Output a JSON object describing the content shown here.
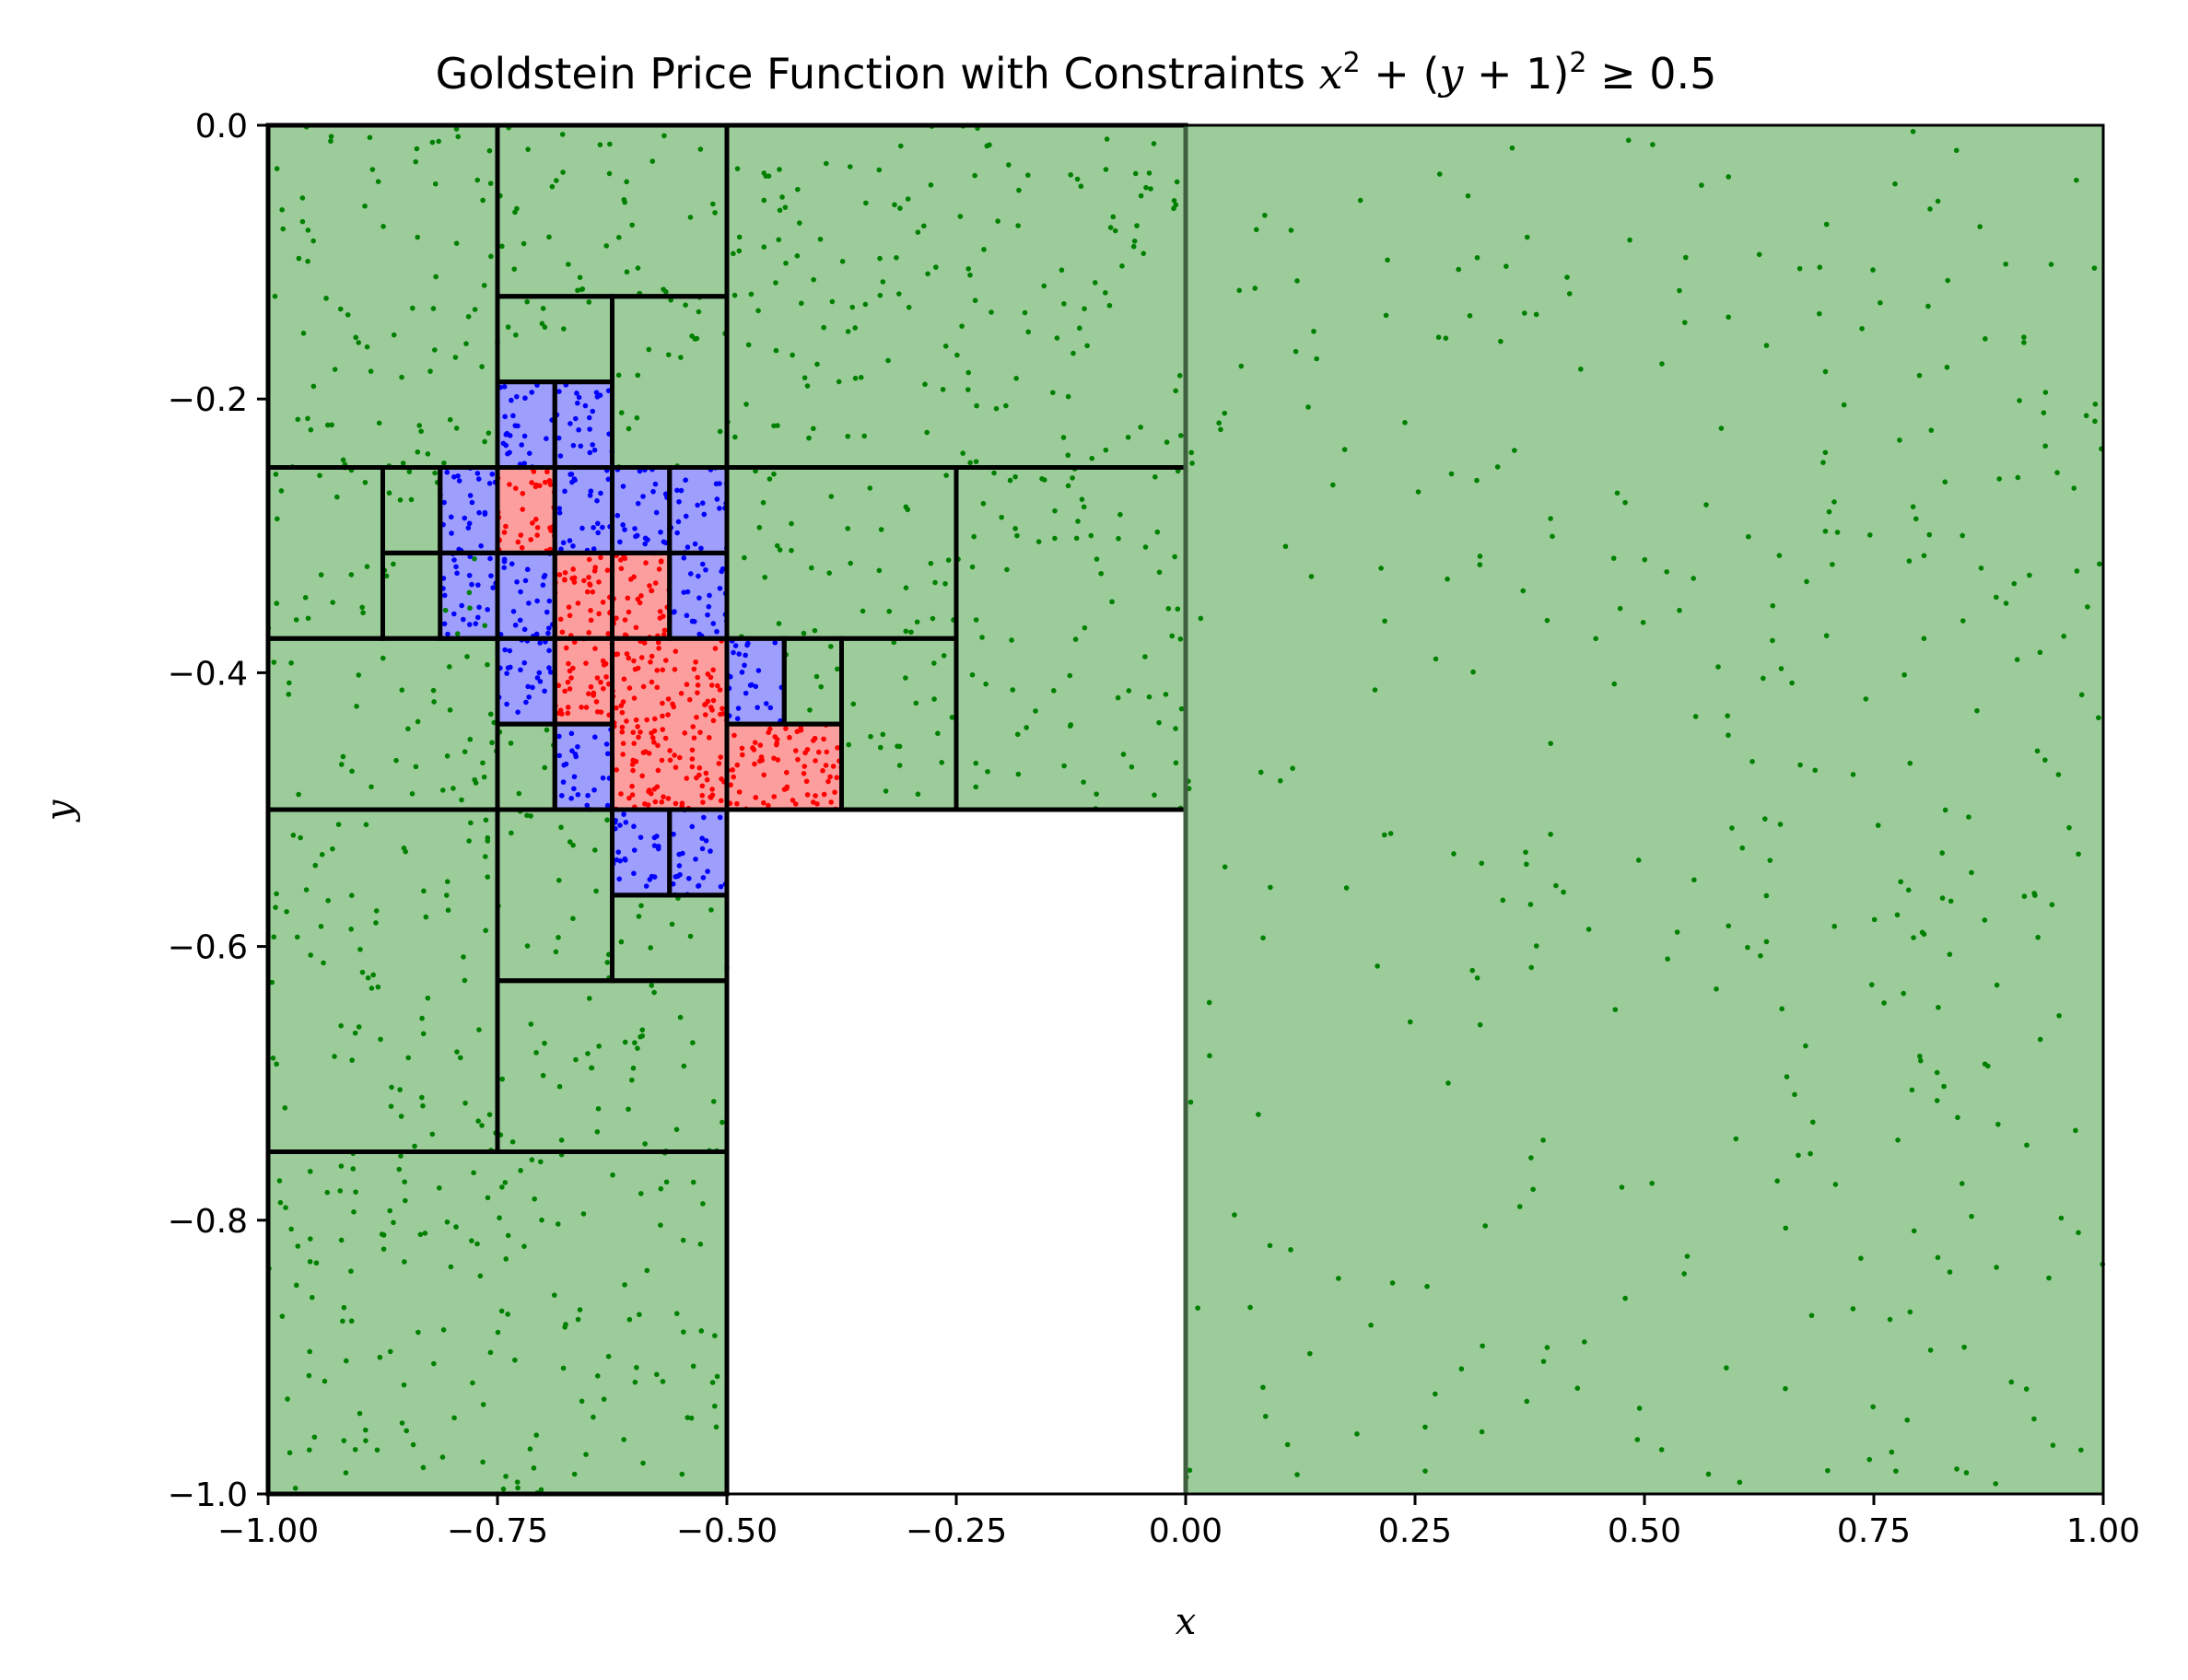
{
  "chart_data": {
    "type": "scatter",
    "title": "Goldstein Price Function with Constraints",
    "title_math": {
      "x": "x",
      "sq1": "2",
      "plus1": " + (",
      "y": "y",
      "plus2": " + 1)",
      "sq2": "2",
      "rel": " ≥ 0.5"
    },
    "xlabel": "x",
    "ylabel": "y",
    "xlim": [
      -1.0,
      1.0
    ],
    "ylim": [
      -1.0,
      0.0
    ],
    "x_ticks": [
      "−1.00",
      "−0.75",
      "−0.50",
      "−0.25",
      "0.00",
      "0.25",
      "0.50",
      "0.75",
      "1.00"
    ],
    "y_ticks": [
      "0.0",
      "−0.2",
      "−0.4",
      "−0.6",
      "−0.8",
      "−1.0"
    ],
    "x_tick_values": [
      -1.0,
      -0.75,
      -0.5,
      -0.25,
      0.0,
      0.25,
      0.5,
      0.75,
      1.0
    ],
    "y_tick_values": [
      0.0,
      -0.2,
      -0.4,
      -0.6,
      -0.8,
      -1.0
    ],
    "grid": false,
    "legend": "none",
    "colors": {
      "feasible_fill": "#9ccc9a",
      "boundary_fill": "#9e9efd",
      "optimal_fill": "#fd9e9e",
      "feasible_points": "#008000",
      "boundary_points": "#0000ff",
      "optimal_points": "#ff0000",
      "box_edge": "#000000"
    },
    "boxes": [
      {
        "x": [
          0.0,
          1.0
        ],
        "y": [
          -1.0,
          0.0
        ],
        "status": "feasible"
      },
      {
        "x": [
          -1.0,
          -0.75
        ],
        "y": [
          -0.25,
          0.0
        ],
        "status": "feasible"
      },
      {
        "x": [
          -0.75,
          -0.5
        ],
        "y": [
          -0.125,
          0.0
        ],
        "status": "feasible"
      },
      {
        "x": [
          -0.5,
          0.0
        ],
        "y": [
          -0.25,
          0.0
        ],
        "status": "feasible"
      },
      {
        "x": [
          -0.75,
          -0.625
        ],
        "y": [
          -0.1875,
          -0.125
        ],
        "status": "feasible"
      },
      {
        "x": [
          -0.625,
          -0.5
        ],
        "y": [
          -0.25,
          -0.125
        ],
        "status": "feasible"
      },
      {
        "x": [
          -1.0,
          -0.875
        ],
        "y": [
          -0.375,
          -0.25
        ],
        "status": "feasible"
      },
      {
        "x": [
          -0.875,
          -0.8125
        ],
        "y": [
          -0.3125,
          -0.25
        ],
        "status": "feasible"
      },
      {
        "x": [
          -0.875,
          -0.75
        ],
        "y": [
          -0.375,
          -0.3125
        ],
        "status": "feasible"
      },
      {
        "x": [
          -0.5,
          -0.25
        ],
        "y": [
          -0.375,
          -0.25
        ],
        "status": "feasible"
      },
      {
        "x": [
          -0.25,
          0.0
        ],
        "y": [
          -0.5,
          -0.25
        ],
        "status": "feasible"
      },
      {
        "x": [
          -1.0,
          -0.75
        ],
        "y": [
          -0.5,
          -0.375
        ],
        "status": "feasible"
      },
      {
        "x": [
          -0.4375,
          -0.375
        ],
        "y": [
          -0.4375,
          -0.375
        ],
        "status": "feasible"
      },
      {
        "x": [
          -0.375,
          -0.25
        ],
        "y": [
          -0.5,
          -0.375
        ],
        "status": "feasible"
      },
      {
        "x": [
          -0.75,
          -0.6875
        ],
        "y": [
          -0.5,
          -0.4375
        ],
        "status": "feasible"
      },
      {
        "x": [
          -1.0,
          -0.75
        ],
        "y": [
          -0.75,
          -0.5
        ],
        "status": "feasible"
      },
      {
        "x": [
          -0.75,
          -0.625
        ],
        "y": [
          -0.625,
          -0.5
        ],
        "status": "feasible"
      },
      {
        "x": [
          -0.625,
          -0.5
        ],
        "y": [
          -0.625,
          -0.5625
        ],
        "status": "feasible"
      },
      {
        "x": [
          -0.75,
          -0.5
        ],
        "y": [
          -0.75,
          -0.625
        ],
        "status": "feasible"
      },
      {
        "x": [
          -1.0,
          -0.5
        ],
        "y": [
          -1.0,
          -0.75
        ],
        "status": "feasible"
      },
      {
        "x": [
          -0.75,
          -0.6875
        ],
        "y": [
          -0.25,
          -0.1875
        ],
        "status": "boundary"
      },
      {
        "x": [
          -0.6875,
          -0.625
        ],
        "y": [
          -0.25,
          -0.1875
        ],
        "status": "boundary"
      },
      {
        "x": [
          -0.8125,
          -0.75
        ],
        "y": [
          -0.3125,
          -0.25
        ],
        "status": "boundary"
      },
      {
        "x": [
          -0.6875,
          -0.625
        ],
        "y": [
          -0.3125,
          -0.25
        ],
        "status": "boundary"
      },
      {
        "x": [
          -0.625,
          -0.5625
        ],
        "y": [
          -0.3125,
          -0.25
        ],
        "status": "boundary"
      },
      {
        "x": [
          -0.5625,
          -0.5
        ],
        "y": [
          -0.3125,
          -0.25
        ],
        "status": "boundary"
      },
      {
        "x": [
          -0.8125,
          -0.75
        ],
        "y": [
          -0.375,
          -0.3125
        ],
        "status": "boundary"
      },
      {
        "x": [
          -0.75,
          -0.6875
        ],
        "y": [
          -0.375,
          -0.3125
        ],
        "status": "boundary"
      },
      {
        "x": [
          -0.5625,
          -0.5
        ],
        "y": [
          -0.375,
          -0.3125
        ],
        "status": "boundary"
      },
      {
        "x": [
          -0.75,
          -0.6875
        ],
        "y": [
          -0.4375,
          -0.375
        ],
        "status": "boundary"
      },
      {
        "x": [
          -0.5,
          -0.4375
        ],
        "y": [
          -0.4375,
          -0.375
        ],
        "status": "boundary"
      },
      {
        "x": [
          -0.6875,
          -0.625
        ],
        "y": [
          -0.5,
          -0.4375
        ],
        "status": "boundary"
      },
      {
        "x": [
          -0.625,
          -0.5625
        ],
        "y": [
          -0.5625,
          -0.5
        ],
        "status": "boundary"
      },
      {
        "x": [
          -0.5625,
          -0.5
        ],
        "y": [
          -0.5625,
          -0.5
        ],
        "status": "boundary"
      },
      {
        "x": [
          -0.75,
          -0.6875
        ],
        "y": [
          -0.3125,
          -0.25
        ],
        "status": "optimal"
      },
      {
        "x": [
          -0.6875,
          -0.625
        ],
        "y": [
          -0.375,
          -0.3125
        ],
        "status": "optimal"
      },
      {
        "x": [
          -0.625,
          -0.5625
        ],
        "y": [
          -0.375,
          -0.3125
        ],
        "status": "optimal"
      },
      {
        "x": [
          -0.6875,
          -0.625
        ],
        "y": [
          -0.4375,
          -0.375
        ],
        "status": "optimal"
      },
      {
        "x": [
          -0.625,
          -0.5
        ],
        "y": [
          -0.5,
          -0.375
        ],
        "status": "optimal"
      },
      {
        "x": [
          -0.5,
          -0.375
        ],
        "y": [
          -0.5,
          -0.4375
        ],
        "status": "optimal"
      }
    ],
    "infeasible_region": {
      "x": [
        -0.5,
        0.0
      ],
      "y": [
        -1.0,
        -0.5
      ]
    }
  }
}
